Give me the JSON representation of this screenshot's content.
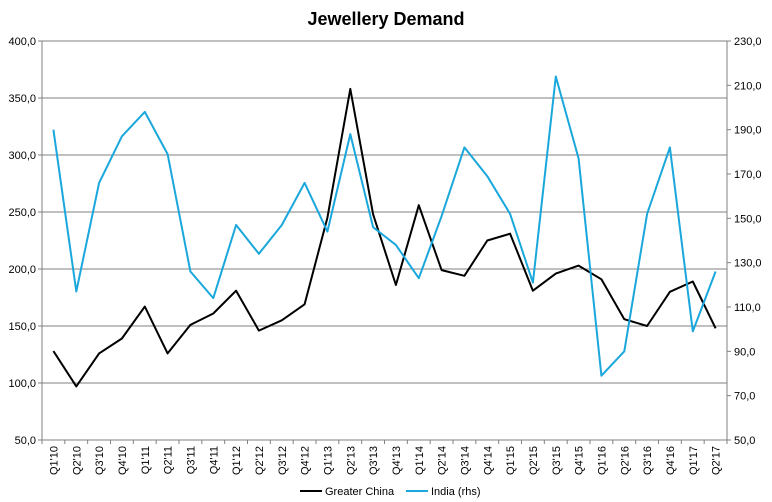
{
  "chart_data": {
    "type": "line",
    "title": "Jewellery Demand",
    "xlabel": "",
    "ylabel": "",
    "ylabel_right": "",
    "categories": [
      "Q1'10",
      "Q2'10",
      "Q3'10",
      "Q4'10",
      "Q1'11",
      "Q2'11",
      "Q3'11",
      "Q4'11",
      "Q1'12",
      "Q2'12",
      "Q3'12",
      "Q4'12",
      "Q1'13",
      "Q2'13",
      "Q3'13",
      "Q4'13",
      "Q1'14",
      "Q2'14",
      "Q3'14",
      "Q4'14",
      "Q1'15",
      "Q2'15",
      "Q3'15",
      "Q4'15",
      "Q1'16",
      "Q2'16",
      "Q3'16",
      "Q4'16",
      "Q1'17",
      "Q2'17"
    ],
    "ylim_left": [
      50,
      400
    ],
    "ylim_right": [
      50,
      230
    ],
    "yticks_left": [
      "50,0",
      "100,0",
      "150,0",
      "200,0",
      "250,0",
      "300,0",
      "350,0",
      "400,0"
    ],
    "yticks_right": [
      "50,0",
      "70,0",
      "90,0",
      "110,0",
      "130,0",
      "150,0",
      "170,0",
      "190,0",
      "210,0",
      "230,0"
    ],
    "grid": true,
    "legend_position": "bottom",
    "series": [
      {
        "name": "Greater China",
        "axis": "left",
        "color": "#000000",
        "values": [
          128,
          97,
          126,
          139,
          167,
          126,
          151,
          161,
          181,
          146,
          155,
          169,
          245,
          358,
          248,
          186,
          256,
          199,
          194,
          225,
          231,
          181,
          196,
          203,
          191,
          156,
          150,
          180,
          189,
          148
        ]
      },
      {
        "name": "India (rhs)",
        "axis": "right",
        "color": "#1aa7dc",
        "values": [
          190,
          117,
          166,
          187,
          198,
          179,
          126,
          114,
          147,
          134,
          147,
          166,
          144,
          188,
          146,
          138,
          123,
          151,
          182,
          169,
          152,
          121,
          214,
          177,
          79,
          90,
          152,
          182,
          99,
          126
        ]
      }
    ]
  }
}
